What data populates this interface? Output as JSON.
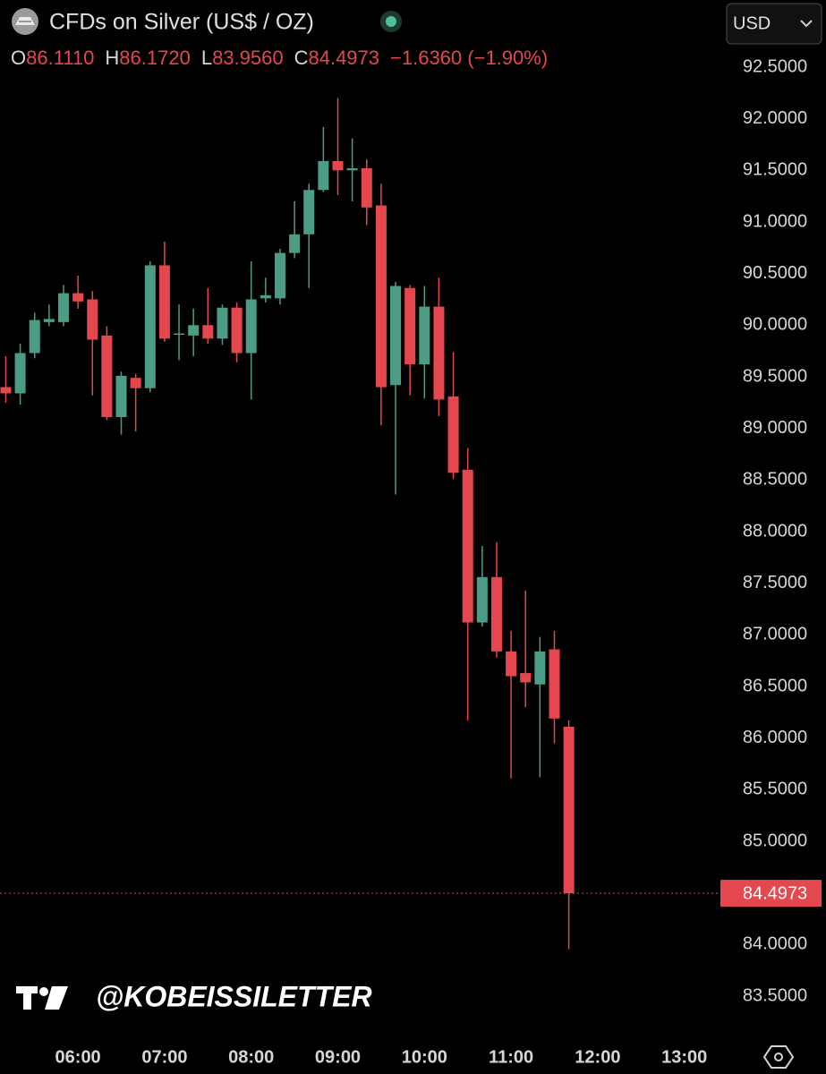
{
  "header": {
    "title": "CFDs on Silver (US$ / OZ)",
    "ohlc": [
      {
        "key": "O",
        "value": "86.1110"
      },
      {
        "key": "H",
        "value": "86.1720"
      },
      {
        "key": "L",
        "value": "83.9560"
      },
      {
        "key": "C",
        "value": "84.4973"
      }
    ],
    "change": "−1.6360 (−1.90%)",
    "currency": "USD",
    "last_price_label": "84.4973",
    "watermark": "@KOBEISSILETTER"
  },
  "chart_data": {
    "type": "candlestick",
    "x": [
      "05:10",
      "05:20",
      "05:30",
      "05:40",
      "05:50",
      "06:00",
      "06:10",
      "06:20",
      "06:30",
      "06:40",
      "06:50",
      "07:00",
      "07:10",
      "07:20",
      "07:30",
      "07:40",
      "07:50",
      "08:00",
      "08:10",
      "08:20",
      "08:30",
      "08:40",
      "08:50",
      "09:00",
      "09:10",
      "09:20",
      "09:30",
      "09:40",
      "09:50",
      "10:00",
      "10:10",
      "10:20",
      "10:30",
      "10:40",
      "10:50",
      "11:00",
      "11:10",
      "11:20",
      "11:30",
      "11:40"
    ],
    "open": [
      89.4,
      89.34,
      89.73,
      90.03,
      90.03,
      90.31,
      90.25,
      89.9,
      89.11,
      89.49,
      89.39,
      90.58,
      89.91,
      89.9,
      90.0,
      89.87,
      90.17,
      89.73,
      90.26,
      90.26,
      90.7,
      90.88,
      91.31,
      91.59,
      91.5,
      91.52,
      91.16,
      89.42,
      90.36,
      89.62,
      90.18,
      89.31,
      88.6,
      87.12,
      87.56,
      86.84,
      86.63,
      86.52,
      86.86,
      86.111
    ],
    "high": [
      89.7,
      89.82,
      90.12,
      90.2,
      90.39,
      90.48,
      90.33,
      89.99,
      89.55,
      89.53,
      90.62,
      90.81,
      90.2,
      90.16,
      90.36,
      90.2,
      90.22,
      90.62,
      90.46,
      90.74,
      91.2,
      91.37,
      91.92,
      92.2,
      91.81,
      91.61,
      91.37,
      90.42,
      90.39,
      90.38,
      90.46,
      89.74,
      88.81,
      87.86,
      87.9,
      87.04,
      87.43,
      86.98,
      87.04,
      86.172
    ],
    "low": [
      89.25,
      89.23,
      89.68,
      89.99,
      89.99,
      90.16,
      89.32,
      89.08,
      88.94,
      88.97,
      89.35,
      89.84,
      89.66,
      89.7,
      89.82,
      89.81,
      89.64,
      89.28,
      90.22,
      90.2,
      90.65,
      90.36,
      91.29,
      91.26,
      91.2,
      90.97,
      89.03,
      88.36,
      89.32,
      89.29,
      89.12,
      88.51,
      86.17,
      87.08,
      86.78,
      85.61,
      86.3,
      85.62,
      85.95,
      83.956
    ],
    "close": [
      89.34,
      89.73,
      90.05,
      90.06,
      90.31,
      90.23,
      89.86,
      89.11,
      89.51,
      89.39,
      90.58,
      89.87,
      89.92,
      90.0,
      89.87,
      90.17,
      89.73,
      90.25,
      90.29,
      90.7,
      90.88,
      91.31,
      91.59,
      91.5,
      91.52,
      91.14,
      89.4,
      90.38,
      89.62,
      90.18,
      89.28,
      88.57,
      87.12,
      87.56,
      86.84,
      86.6,
      86.54,
      86.84,
      86.19,
      84.4973
    ],
    "up_color": "#4c9c86",
    "down_color": "#e5474e",
    "xlim": [
      "05:06",
      "13:25"
    ],
    "xticks": [
      "06:00",
      "07:00",
      "08:00",
      "09:00",
      "10:00",
      "11:00",
      "12:00",
      "13:00"
    ],
    "ylim": [
      83.18,
      93.15
    ],
    "yticks": [
      {
        "value": 83.5,
        "label": "83.5000"
      },
      {
        "value": 84.0,
        "label": "84.0000"
      },
      {
        "value": 84.5,
        "label": "84.5000"
      },
      {
        "value": 85.0,
        "label": "85.0000"
      },
      {
        "value": 85.5,
        "label": "85.5000"
      },
      {
        "value": 86.0,
        "label": "86.0000"
      },
      {
        "value": 86.5,
        "label": "86.5000"
      },
      {
        "value": 87.0,
        "label": "87.0000"
      },
      {
        "value": 87.5,
        "label": "87.5000"
      },
      {
        "value": 88.0,
        "label": "88.0000"
      },
      {
        "value": 88.5,
        "label": "88.5000"
      },
      {
        "value": 89.0,
        "label": "89.0000"
      },
      {
        "value": 89.5,
        "label": "89.5000"
      },
      {
        "value": 90.0,
        "label": "90.0000"
      },
      {
        "value": 90.5,
        "label": "90.5000"
      },
      {
        "value": 91.0,
        "label": "91.0000"
      },
      {
        "value": 91.5,
        "label": "91.5000"
      },
      {
        "value": 92.0,
        "label": "92.0000"
      },
      {
        "value": 92.5,
        "label": "92.5000"
      }
    ],
    "grid": false
  }
}
